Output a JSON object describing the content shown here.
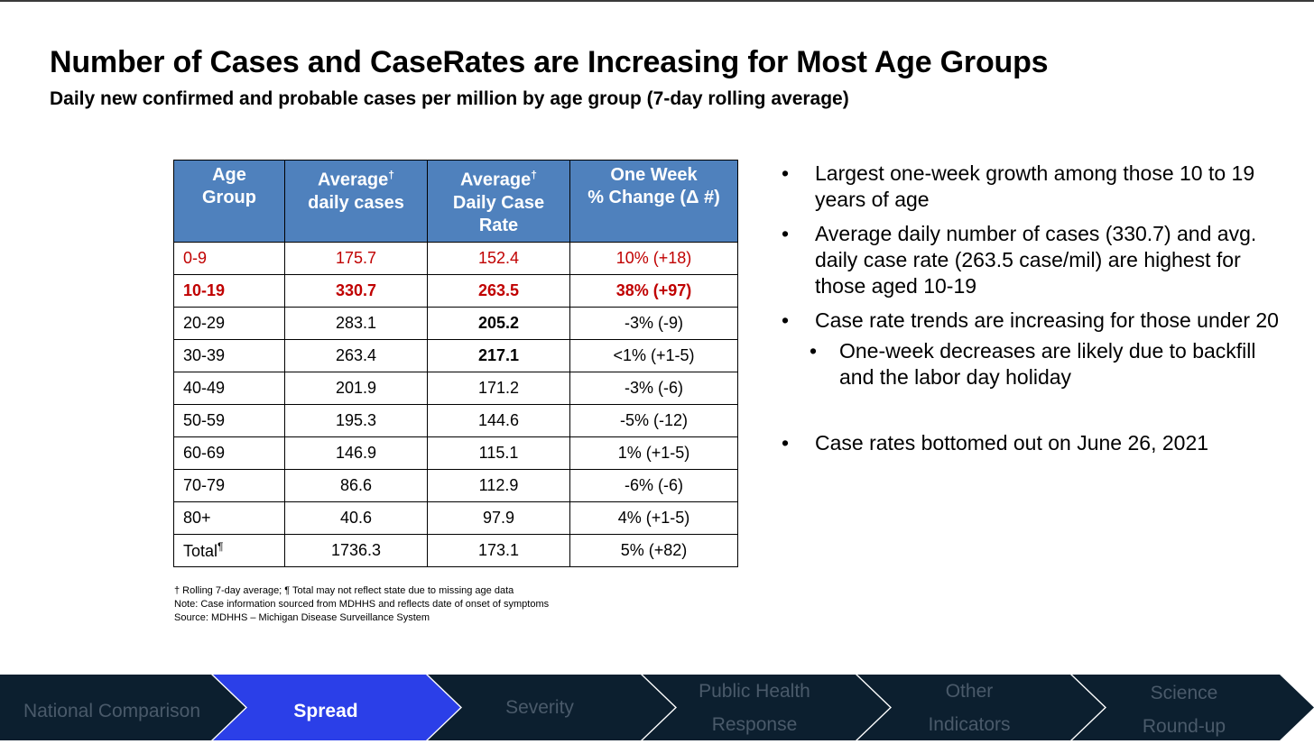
{
  "title": "Number of Cases and CaseRates are Increasing for Most Age Groups",
  "subtitle": "Daily new confirmed and probable cases per million by age group (7-day rolling average)",
  "table": {
    "headers": {
      "age_line1": "Age",
      "age_line2": "Group",
      "cases_line1": "Average",
      "cases_sup": "†",
      "cases_line2": "daily cases",
      "rate_line1": "Average",
      "rate_sup": "†",
      "rate_line2": "Daily Case",
      "rate_line3": "Rate",
      "change_line1": "One Week",
      "change_line2": "% Change (Δ #)"
    },
    "rows": [
      {
        "age": "0-9",
        "cases": "175.7",
        "rate": "152.4",
        "change": "10% (+18)"
      },
      {
        "age": "10-19",
        "cases": "330.7",
        "rate": "263.5",
        "change": "38% (+97)"
      },
      {
        "age": "20-29",
        "cases": "283.1",
        "rate": "205.2",
        "change": "-3% (-9)"
      },
      {
        "age": "30-39",
        "cases": "263.4",
        "rate": "217.1",
        "change": "<1% (+1-5)"
      },
      {
        "age": "40-49",
        "cases": "201.9",
        "rate": "171.2",
        "change": "-3% (-6)"
      },
      {
        "age": "50-59",
        "cases": "195.3",
        "rate": "144.6",
        "change": "-5% (-12)"
      },
      {
        "age": "60-69",
        "cases": "146.9",
        "rate": "115.1",
        "change": "1% (+1-5)"
      },
      {
        "age": "70-79",
        "cases": "86.6",
        "rate": "112.9",
        "change": "-6% (-6)"
      },
      {
        "age": "80+",
        "cases": "40.6",
        "rate": "97.9",
        "change": "4% (+1-5)"
      }
    ],
    "total": {
      "label": "Total",
      "label_sup": "¶",
      "cases": "1736.3",
      "rate": "173.1",
      "change": "5% (+82)"
    }
  },
  "footnotes": [
    "† Rolling 7-day average; ¶ Total may not reflect state due to missing age data",
    "Note: Case information sourced from MDHHS and reflects date of onset of symptoms",
    "Source: MDHHS – Michigan Disease Surveillance System"
  ],
  "bullets": {
    "marker": "•",
    "b1": "Largest one-week growth among those 10 to 19 years of age",
    "b2": "Average daily number of cases (330.7) and avg. daily case rate (263.5 case/mil) are highest for those aged 10-19",
    "b3": "Case rate trends are increasing for those under 20",
    "b3_sub": "One-week decreases are likely due to backfill and the labor day holiday",
    "b4": "Case rates bottomed out on June 26, 2021"
  },
  "nav": {
    "items": [
      {
        "line1": "National Comparison",
        "line2": ""
      },
      {
        "line1": "Spread",
        "line2": ""
      },
      {
        "line1": "Severity",
        "line2": ""
      },
      {
        "line1": "Public Health",
        "line2": "Response"
      },
      {
        "line1": "Other",
        "line2": "Indicators"
      },
      {
        "line1": "Science",
        "line2": "Round-up"
      }
    ],
    "active_index": 1
  },
  "colors": {
    "header_blue": "#4f81bd",
    "highlight_red": "#c00000",
    "nav_dark": "#0c1f2f",
    "nav_active": "#2b3fe8"
  }
}
